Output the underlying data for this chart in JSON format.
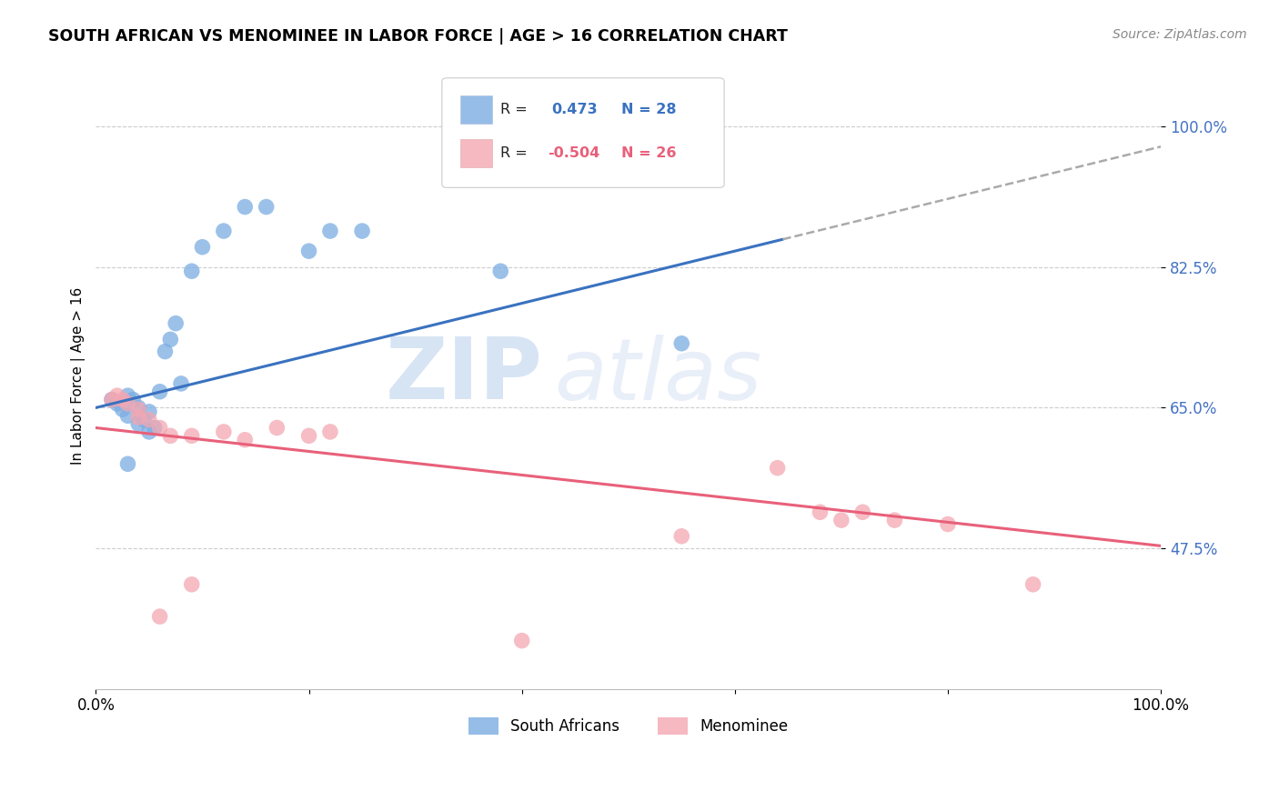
{
  "title": "SOUTH AFRICAN VS MENOMINEE IN LABOR FORCE | AGE > 16 CORRELATION CHART",
  "source": "Source: ZipAtlas.com",
  "ylabel": "In Labor Force | Age > 16",
  "xlim": [
    0.0,
    1.0
  ],
  "ylim": [
    0.3,
    1.08
  ],
  "yticks": [
    0.475,
    0.65,
    0.825,
    1.0
  ],
  "ytick_labels": [
    "47.5%",
    "65.0%",
    "82.5%",
    "100.0%"
  ],
  "xticks": [
    0.0,
    0.2,
    0.4,
    0.6,
    0.8,
    1.0
  ],
  "xtick_labels": [
    "0.0%",
    "",
    "",
    "",
    "",
    "100.0%"
  ],
  "blue_color": "#7BADE2",
  "pink_color": "#F4A7B2",
  "blue_label": "South Africans",
  "pink_label": "Menominee",
  "watermark_zip": "ZIP",
  "watermark_atlas": "atlas",
  "blue_scatter_x": [
    0.015,
    0.02,
    0.025,
    0.03,
    0.03,
    0.035,
    0.04,
    0.04,
    0.045,
    0.05,
    0.05,
    0.055,
    0.06,
    0.065,
    0.07,
    0.075,
    0.08,
    0.09,
    0.1,
    0.12,
    0.14,
    0.16,
    0.2,
    0.22,
    0.25,
    0.38,
    0.55,
    0.03
  ],
  "blue_scatter_y": [
    0.66,
    0.655,
    0.648,
    0.665,
    0.64,
    0.66,
    0.65,
    0.63,
    0.635,
    0.62,
    0.645,
    0.625,
    0.67,
    0.72,
    0.735,
    0.755,
    0.68,
    0.82,
    0.85,
    0.87,
    0.9,
    0.9,
    0.845,
    0.87,
    0.87,
    0.82,
    0.73,
    0.58
  ],
  "pink_scatter_x": [
    0.015,
    0.02,
    0.025,
    0.03,
    0.04,
    0.04,
    0.05,
    0.06,
    0.07,
    0.09,
    0.12,
    0.14,
    0.17,
    0.2,
    0.22,
    0.55,
    0.64,
    0.68,
    0.7,
    0.72,
    0.75,
    0.8,
    0.88,
    0.4,
    0.09,
    0.06
  ],
  "pink_scatter_y": [
    0.66,
    0.665,
    0.66,
    0.655,
    0.648,
    0.638,
    0.635,
    0.625,
    0.615,
    0.615,
    0.62,
    0.61,
    0.625,
    0.615,
    0.62,
    0.49,
    0.575,
    0.52,
    0.51,
    0.52,
    0.51,
    0.505,
    0.43,
    0.36,
    0.43,
    0.39
  ],
  "blue_line_y_start": 0.65,
  "blue_line_y_solid_end_x": 0.645,
  "blue_line_y_end": 0.975,
  "pink_line_y_start": 0.625,
  "pink_line_y_end": 0.478,
  "legend_R_blue": "0.473",
  "legend_N_blue": "28",
  "legend_R_pink": "-0.504",
  "legend_N_pink": "26"
}
